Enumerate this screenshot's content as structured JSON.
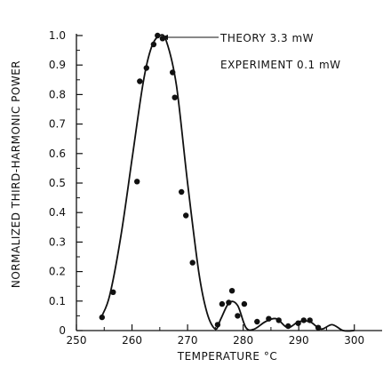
{
  "chart_data": {
    "type": "scatter",
    "title": "",
    "xlabel": "TEMPERATURE °C",
    "ylabel": "NORMALIZED THIRD-HARMONIC POWER",
    "xlim": [
      250,
      305
    ],
    "ylim": [
      0,
      1.0
    ],
    "x_ticks": [
      250,
      260,
      270,
      280,
      290,
      300
    ],
    "y_ticks": [
      0,
      0.1,
      0.2,
      0.3,
      0.4,
      0.5,
      0.6,
      0.7,
      0.8,
      0.9,
      1.0
    ],
    "x_tick_labels": [
      "250",
      "260",
      "270",
      "280",
      "290",
      "300"
    ],
    "y_tick_labels": [
      "0",
      "0.1",
      "0.2",
      "0.3",
      "0.4",
      "0.5",
      "0.6",
      "0.7",
      "0.8",
      "0.9",
      "1.0"
    ],
    "grid": false,
    "series": [
      {
        "kind": "points",
        "x": [
          254.6,
          256.6,
          260.9,
          261.4,
          262.6,
          263.9,
          264.6,
          265.5,
          267.3,
          267.7,
          268.9,
          269.7,
          270.9,
          275.4,
          276.2,
          277.4,
          278.0,
          279.0,
          280.2,
          282.5,
          284.6,
          286.4,
          288.1,
          289.9,
          290.9,
          292.0,
          293.5
        ],
        "y": [
          0.045,
          0.13,
          0.505,
          0.845,
          0.89,
          0.97,
          1.0,
          0.99,
          0.875,
          0.79,
          0.47,
          0.39,
          0.23,
          0.02,
          0.09,
          0.095,
          0.135,
          0.05,
          0.09,
          0.03,
          0.04,
          0.035,
          0.015,
          0.025,
          0.035,
          0.035,
          0.01
        ]
      },
      {
        "kind": "curve",
        "x": [
          254.6,
          256,
          258,
          260,
          262,
          263.5,
          265,
          266.2,
          268,
          270,
          272,
          273.5,
          275,
          276,
          277.5,
          279,
          280.5,
          282,
          284,
          286,
          288,
          290,
          292,
          294,
          296,
          298,
          300
        ],
        "y": [
          0.05,
          0.12,
          0.32,
          0.58,
          0.84,
          0.96,
          1.0,
          0.98,
          0.83,
          0.5,
          0.2,
          0.06,
          0.005,
          0.04,
          0.095,
          0.085,
          0.01,
          0.005,
          0.03,
          0.04,
          0.01,
          0.03,
          0.03,
          0.005,
          0.02,
          0.0,
          0.0
        ]
      }
    ],
    "annotations": [
      {
        "text": "THEORY 3.3 mW",
        "arrow_to": [
          265.5,
          0.99
        ]
      },
      {
        "text": "EXPERIMENT 0.1 mW"
      }
    ]
  }
}
